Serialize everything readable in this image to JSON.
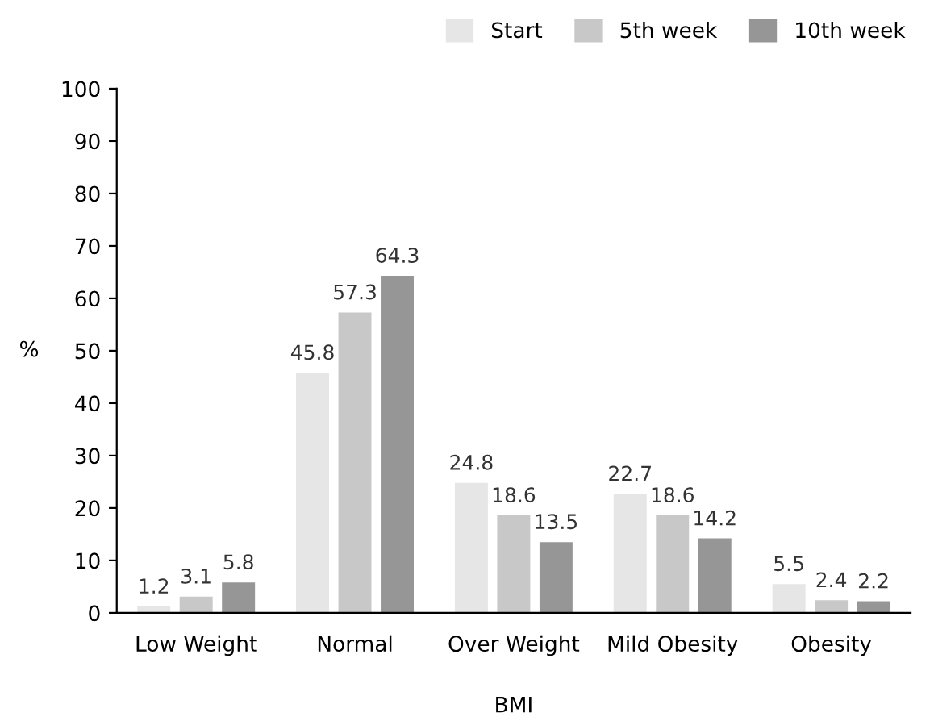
{
  "chart_data": {
    "type": "bar",
    "xlabel": "BMI",
    "ylabel": "%",
    "categories": [
      "Low Weight",
      "Normal",
      "Over Weight",
      "Mild Obesity",
      "Obesity"
    ],
    "series": [
      {
        "name": "Start",
        "color": "#e6e6e6",
        "values": [
          1.2,
          45.8,
          24.8,
          22.7,
          5.5
        ]
      },
      {
        "name": "5th week",
        "color": "#c8c8c8",
        "values": [
          3.1,
          57.3,
          18.6,
          18.6,
          2.4
        ]
      },
      {
        "name": "10th week",
        "color": "#969696",
        "values": [
          5.8,
          64.3,
          13.5,
          14.2,
          2.2
        ]
      }
    ],
    "ylim": [
      0,
      100
    ],
    "yticks": [
      0,
      10,
      20,
      30,
      40,
      50,
      60,
      70,
      80,
      90,
      100
    ],
    "data_labels": true,
    "grid": false,
    "legend": "top right"
  }
}
